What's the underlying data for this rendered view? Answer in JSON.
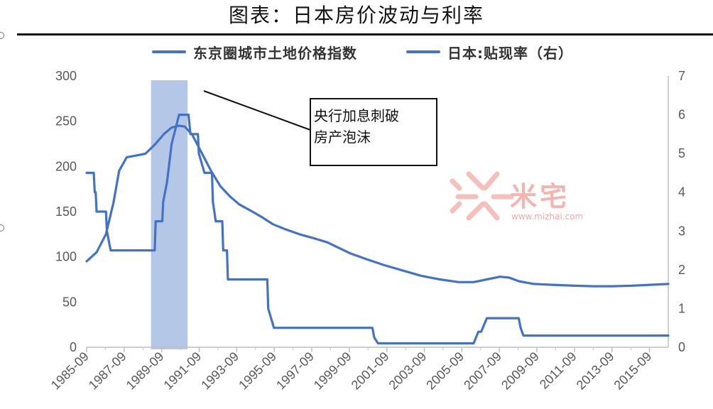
{
  "title": "图表：日本房价波动与利率",
  "annotation": {
    "line1": "央行加息刺破",
    "line2": "房产泡沫"
  },
  "watermark": {
    "text": "米宅",
    "url": "www.mizhai.com"
  },
  "colors": {
    "line": "#4472C4",
    "highlight": "#B4C7E7",
    "axis": "#BFBFBF",
    "tick": "#595959"
  },
  "chart_data": {
    "type": "line",
    "title": "图表：日本房价波动与利率",
    "x_ticks": [
      "1985-09",
      "1987-09",
      "1989-09",
      "1991-09",
      "1993-09",
      "1995-09",
      "1997-09",
      "1999-09",
      "2001-09",
      "2003-09",
      "2005-09",
      "2007-09",
      "2009-09",
      "2011-09",
      "2013-09",
      "2015-09"
    ],
    "x_range": [
      1985.67,
      2016.67
    ],
    "y_left": {
      "range": [
        0,
        300
      ],
      "ticks": [
        0,
        50,
        100,
        150,
        200,
        250,
        300
      ]
    },
    "y_right": {
      "range": [
        0,
        7
      ],
      "ticks": [
        0,
        1,
        2,
        3,
        4,
        5,
        6,
        7
      ]
    },
    "highlight_band": [
      1989.1,
      1991.05
    ],
    "legend_position": "top",
    "series": [
      {
        "name": "东京圈城市土地价格指数",
        "axis": "left",
        "points": [
          [
            1985.67,
            95
          ],
          [
            1986.2,
            105
          ],
          [
            1986.7,
            125
          ],
          [
            1987.1,
            160
          ],
          [
            1987.4,
            195
          ],
          [
            1987.8,
            210
          ],
          [
            1988.3,
            212
          ],
          [
            1988.8,
            214
          ],
          [
            1989.3,
            224
          ],
          [
            1989.8,
            236
          ],
          [
            1990.2,
            243
          ],
          [
            1990.6,
            245
          ],
          [
            1990.9,
            244
          ],
          [
            1991.3,
            235
          ],
          [
            1991.8,
            215
          ],
          [
            1992.3,
            195
          ],
          [
            1992.8,
            178
          ],
          [
            1993.3,
            167
          ],
          [
            1993.8,
            158
          ],
          [
            1994.5,
            150
          ],
          [
            1995.0,
            144
          ],
          [
            1995.6,
            136
          ],
          [
            1996.2,
            131
          ],
          [
            1997.0,
            125
          ],
          [
            1997.7,
            121
          ],
          [
            1998.5,
            116
          ],
          [
            1999.0,
            111
          ],
          [
            1999.7,
            104
          ],
          [
            2000.5,
            98
          ],
          [
            2001.5,
            91
          ],
          [
            2002.5,
            85
          ],
          [
            2003.5,
            79
          ],
          [
            2004.5,
            75
          ],
          [
            2005.5,
            72
          ],
          [
            2006.3,
            72
          ],
          [
            2007.0,
            75
          ],
          [
            2007.7,
            78
          ],
          [
            2008.2,
            77
          ],
          [
            2008.7,
            73
          ],
          [
            2009.5,
            70
          ],
          [
            2010.5,
            69
          ],
          [
            2011.7,
            68
          ],
          [
            2012.7,
            67.5
          ],
          [
            2013.7,
            67.5
          ],
          [
            2014.7,
            68
          ],
          [
            2015.7,
            69
          ],
          [
            2016.67,
            70
          ]
        ]
      },
      {
        "name": "日本:贴现率（右）",
        "axis": "right",
        "points": [
          [
            1985.67,
            4.5
          ],
          [
            1986.05,
            4.5
          ],
          [
            1986.1,
            4.0
          ],
          [
            1986.15,
            4.0
          ],
          [
            1986.2,
            3.5
          ],
          [
            1986.7,
            3.5
          ],
          [
            1986.75,
            3.0
          ],
          [
            1986.95,
            2.5
          ],
          [
            1988.7,
            2.5
          ],
          [
            1989.3,
            2.5
          ],
          [
            1989.35,
            3.25
          ],
          [
            1989.7,
            3.25
          ],
          [
            1989.75,
            3.75
          ],
          [
            1989.95,
            4.25
          ],
          [
            1990.2,
            5.25
          ],
          [
            1990.6,
            6.0
          ],
          [
            1991.1,
            6.0
          ],
          [
            1991.2,
            5.5
          ],
          [
            1991.6,
            5.5
          ],
          [
            1991.65,
            5.0
          ],
          [
            1991.95,
            4.5
          ],
          [
            1992.35,
            4.5
          ],
          [
            1992.4,
            3.75
          ],
          [
            1992.55,
            3.25
          ],
          [
            1992.9,
            3.25
          ],
          [
            1992.95,
            2.5
          ],
          [
            1993.15,
            2.5
          ],
          [
            1993.2,
            1.75
          ],
          [
            1994.6,
            1.75
          ],
          [
            1995.3,
            1.75
          ],
          [
            1995.35,
            1.0
          ],
          [
            1995.65,
            0.5
          ],
          [
            2000.9,
            0.5
          ],
          [
            2001.0,
            0.25
          ],
          [
            2001.2,
            0.1
          ],
          [
            2006.3,
            0.1
          ],
          [
            2006.55,
            0.4
          ],
          [
            2006.7,
            0.4
          ],
          [
            2007.0,
            0.75
          ],
          [
            2008.7,
            0.75
          ],
          [
            2008.8,
            0.5
          ],
          [
            2008.95,
            0.3
          ],
          [
            2016.67,
            0.3
          ]
        ]
      }
    ]
  }
}
